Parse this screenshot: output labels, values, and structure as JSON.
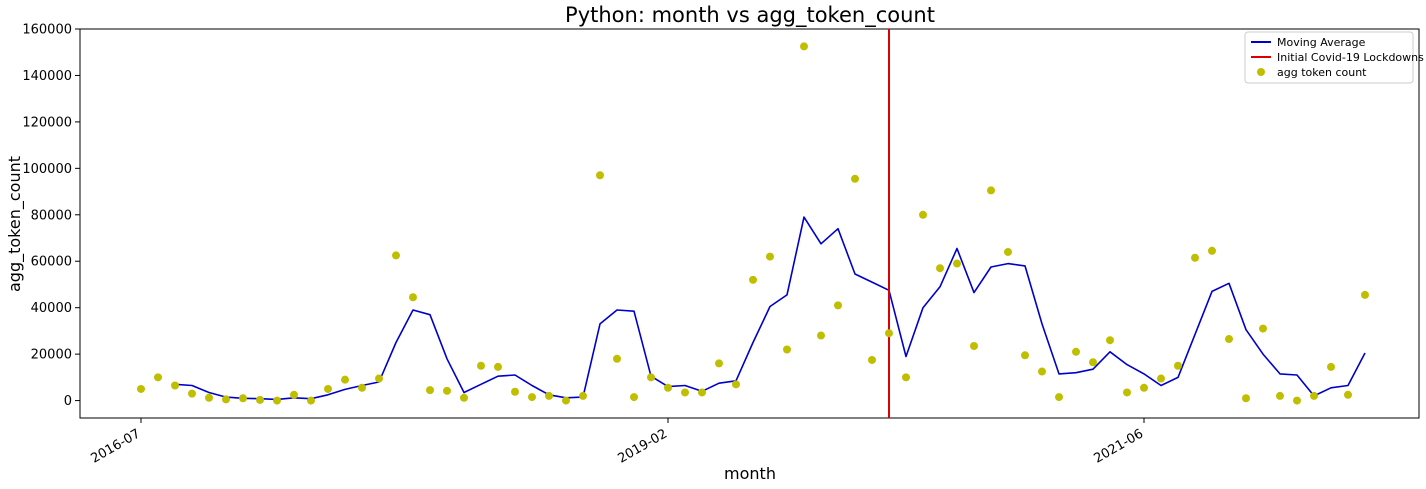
{
  "chart_data": {
    "type": "line",
    "title": "Python: month vs agg_token_count",
    "xlabel": "month",
    "ylabel": "agg_token_count",
    "ylim": [
      -7500,
      160000
    ],
    "y_ticks": [
      0,
      20000,
      40000,
      60000,
      80000,
      100000,
      120000,
      140000,
      160000
    ],
    "x_ticks": [
      "2016-07",
      "2019-02",
      "2021-06"
    ],
    "x_start_month": "2016-07",
    "grid": false,
    "legend_position": "top-right",
    "series": [
      {
        "name": "Moving Average",
        "kind": "line",
        "color": "#0000cc",
        "values": [
          null,
          null,
          7000,
          6500,
          3500,
          1500,
          1000,
          800,
          500,
          1200,
          800,
          2500,
          4800,
          6500,
          8000,
          25000,
          39000,
          37000,
          18000,
          3500,
          7000,
          10500,
          11000,
          6500,
          2500,
          1200,
          1500,
          33000,
          39000,
          38500,
          10500,
          6000,
          6500,
          4000,
          7500,
          8500,
          25000,
          40500,
          45500,
          79000,
          67500,
          74000,
          54500,
          51000,
          47500,
          19000,
          40000,
          49000,
          65500,
          46500,
          57500,
          59000,
          58000,
          33000,
          11500,
          12000,
          13500,
          21000,
          15500,
          11500,
          6500,
          10000,
          28500,
          47000,
          50500,
          30500,
          20000,
          11500,
          11000,
          2000,
          5500,
          6500,
          20500
        ]
      },
      {
        "name": "Initial Covid-19 Lockdowns",
        "kind": "vline",
        "color": "#dd0000",
        "x": "2020-03"
      },
      {
        "name": "agg token count",
        "kind": "scatter",
        "color": "#bfbf00",
        "values": [
          5000,
          10000,
          6500,
          3000,
          1200,
          500,
          1000,
          300,
          0,
          2500,
          0,
          5000,
          9000,
          5500,
          9500,
          62500,
          44500,
          4500,
          4200,
          1200,
          15000,
          14500,
          3800,
          1500,
          2000,
          0,
          2000,
          97000,
          18000,
          1500,
          10000,
          5500,
          3500,
          3500,
          16000,
          7000,
          52000,
          62000,
          22000,
          152500,
          28000,
          41000,
          95500,
          17500,
          29000,
          10000,
          80000,
          57000,
          59000,
          23500,
          90500,
          64000,
          19500,
          12500,
          1500,
          21000,
          16500,
          26000,
          3500,
          5500,
          9500,
          15000,
          61500,
          64500,
          26500,
          1000,
          31000,
          2000,
          0,
          2000,
          14500,
          2500,
          45500
        ]
      }
    ]
  }
}
